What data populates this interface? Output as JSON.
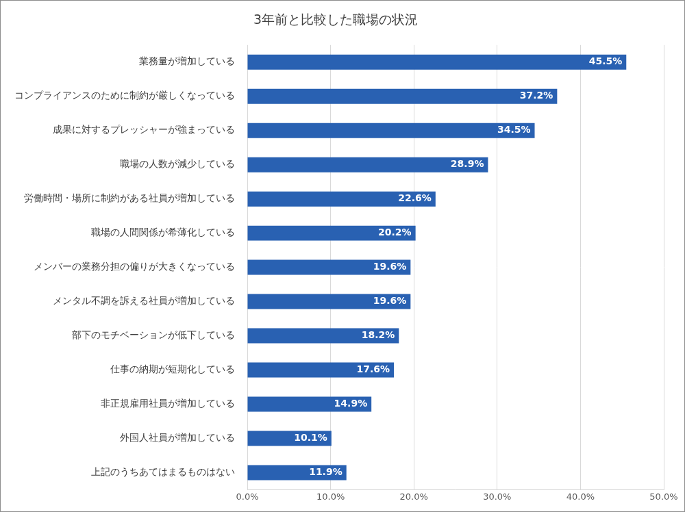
{
  "chart_data": {
    "type": "bar",
    "orientation": "horizontal",
    "title": "3年前と比較した職場の状況",
    "categories": [
      "業務量が増加している",
      "コンプライアンスのために制約が厳しくなっている",
      "成果に対するプレッシャーが強まっている",
      "職場の人数が減少している",
      "労働時間・場所に制約がある社員が増加している",
      "職場の人間関係が希薄化している",
      "メンバーの業務分担の偏りが大きくなっている",
      "メンタル不調を訴える社員が増加している",
      "部下のモチベーションが低下している",
      "仕事の納期が短期化している",
      "非正規雇用社員が増加している",
      "外国人社員が増加している",
      "上記のうちあてはまるものはない"
    ],
    "values": [
      45.5,
      37.2,
      34.5,
      28.9,
      22.6,
      20.2,
      19.6,
      19.6,
      18.2,
      17.6,
      14.9,
      10.1,
      11.9
    ],
    "value_labels": [
      "45.5%",
      "37.2%",
      "34.5%",
      "28.9%",
      "22.6%",
      "20.2%",
      "19.6%",
      "19.6%",
      "18.2%",
      "17.6%",
      "14.9%",
      "10.1%",
      "11.9%"
    ],
    "data_labels": true,
    "color": "#2961b2",
    "xlim": [
      0,
      50
    ],
    "xticks": [
      {
        "value": 0,
        "label": "0.0%"
      },
      {
        "value": 10,
        "label": "10.0%"
      },
      {
        "value": 20,
        "label": "20.0%"
      },
      {
        "value": 30,
        "label": "30.0%"
      },
      {
        "value": 40,
        "label": "40.0%"
      },
      {
        "value": 50,
        "label": "50.0%"
      }
    ],
    "grid": true
  }
}
